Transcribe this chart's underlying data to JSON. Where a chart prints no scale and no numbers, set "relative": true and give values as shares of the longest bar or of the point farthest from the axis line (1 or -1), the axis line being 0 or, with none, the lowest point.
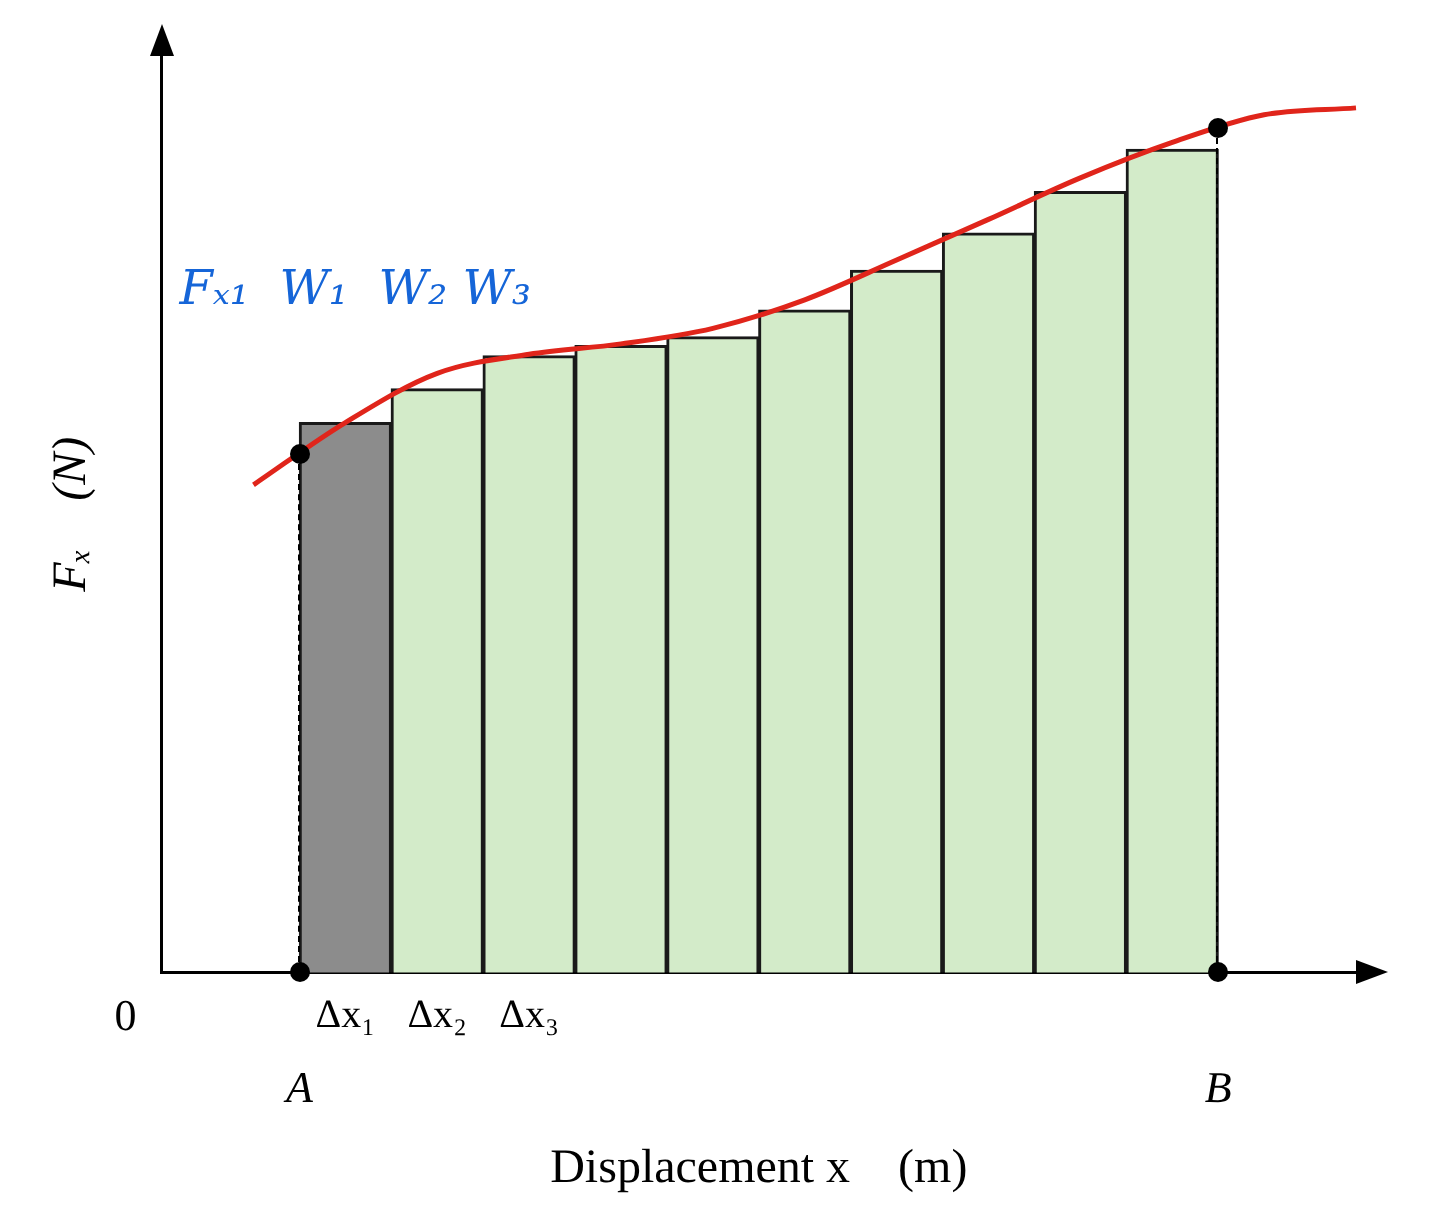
{
  "chart_data": {
    "type": "bar",
    "relative": true,
    "xlabel": "Displacement x    (m)",
    "ylabel": "Fₓ    (N)",
    "categories": [
      null,
      null,
      "Δx₁",
      "Δx₂",
      "Δx₃",
      null,
      null,
      null,
      null,
      null,
      null,
      null,
      null,
      null
    ],
    "values": [
      null,
      null,
      0.636,
      0.675,
      0.713,
      0.725,
      0.735,
      0.766,
      0.812,
      0.855,
      0.903,
      0.952,
      null,
      null
    ],
    "colors": [
      "#d3ebc9",
      "#d3ebc9",
      "#8c8c8c",
      "#d3ebc9",
      "#d3ebc9",
      "#d3ebc9",
      "#d3ebc9",
      "#d3ebc9",
      "#d3ebc9",
      "#d3ebc9",
      "#d3ebc9",
      "#d3ebc9",
      "#d3ebc9",
      "#d3ebc9"
    ],
    "series": [
      {
        "type": "line",
        "color": "#e0251b",
        "values": [
          null,
          0.564,
          0.636,
          0.693,
          0.715,
          0.727,
          0.745,
          0.778,
          0.824,
          0.871,
          0.919,
          0.96,
          0.992,
          1.0
        ]
      }
    ],
    "annotations": [
      "0",
      "A",
      "B",
      "Fₓ₁  W₁  W₂ W₃"
    ],
    "grid": false,
    "legend": false,
    "marker": "none",
    "line_style": "solid"
  }
}
